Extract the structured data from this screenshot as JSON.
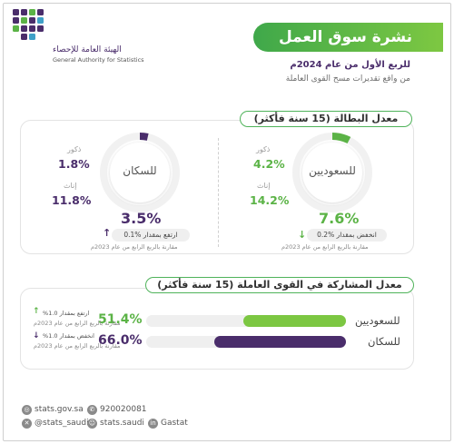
{
  "header": {
    "logo_ar": "الهيئة العامة للإحصاء",
    "logo_en": "General Authority for Statistics",
    "title": "نشرة سوق العمل",
    "period": "للربع الأول من عام 2024م",
    "source": "من واقع تقديرات مسح القوى العاملة"
  },
  "unemployment": {
    "label": "معدل البطالة (15 سنة فأكثر)",
    "saudis": {
      "name": "للسعوديين",
      "male_key": "ذكور",
      "male_value": "4.2%",
      "female_key": "إناث",
      "female_value": "14.2%",
      "total": "7.6%",
      "change_text": "انخفض بمقدار %0.2",
      "compare_text": "مقارنة بالربع الرابع من عام 2023م",
      "ring_fraction": 0.076,
      "color": "#5bb346"
    },
    "population": {
      "name": "للسكان",
      "male_key": "ذكور",
      "male_value": "1.8%",
      "female_key": "إناث",
      "female_value": "11.8%",
      "total": "3.5%",
      "change_text": "ارتفع بمقدار %0.1",
      "compare_text": "مقارنة بالربع الرابع من عام 2023م",
      "ring_fraction": 0.035,
      "color": "#4a2d6b"
    }
  },
  "participation": {
    "label": "معدل المشاركة في القوى العاملة (15 سنة فأكثر)",
    "rows": [
      {
        "name": "للسعوديين",
        "value": "51.4%",
        "fraction": 0.514,
        "change_text": "ارتفع بمقدار 1.0%",
        "compare_text": "مقارنة بالربع الرابع من عام 2023م",
        "color": "#7cc742"
      },
      {
        "name": "للسكان",
        "value": "66.0%",
        "fraction": 0.66,
        "change_text": "انخفض بمقدار 1.0%",
        "compare_text": "مقارنة بالربع الرابع من عام 2023م",
        "color": "#4a2d6b"
      }
    ]
  },
  "footer": {
    "website": "stats.gov.sa",
    "phone": "920020081",
    "twitter": "@stats_saudi",
    "snapchat": "stats.saudi",
    "linkedin": "Gastat"
  }
}
